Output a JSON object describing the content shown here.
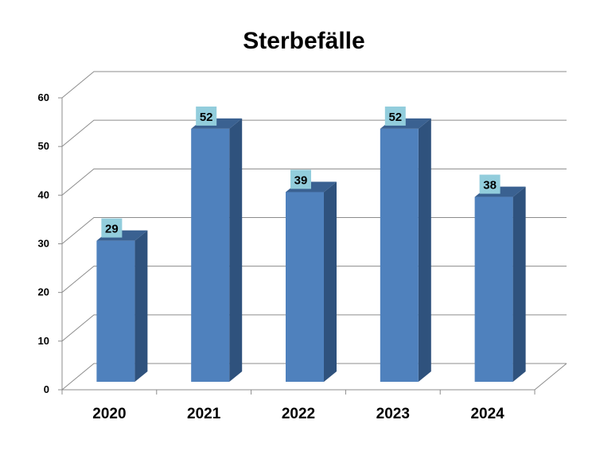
{
  "chart_data": {
    "type": "bar",
    "title": "Sterbefälle",
    "categories": [
      "2020",
      "2021",
      "2022",
      "2023",
      "2024"
    ],
    "values": [
      29,
      52,
      39,
      52,
      38
    ],
    "ylim": [
      0,
      60
    ],
    "yticks": [
      0,
      10,
      20,
      30,
      40,
      50,
      60
    ],
    "grid": true,
    "legend": "none",
    "data_labels": true,
    "style": "3d-column",
    "colors": {
      "bar_front": "#4f81bd",
      "bar_side": "#2f527d",
      "bar_top": "#3a6191",
      "label_bg": "#92cddc",
      "grid": "#8c8c8c"
    }
  }
}
